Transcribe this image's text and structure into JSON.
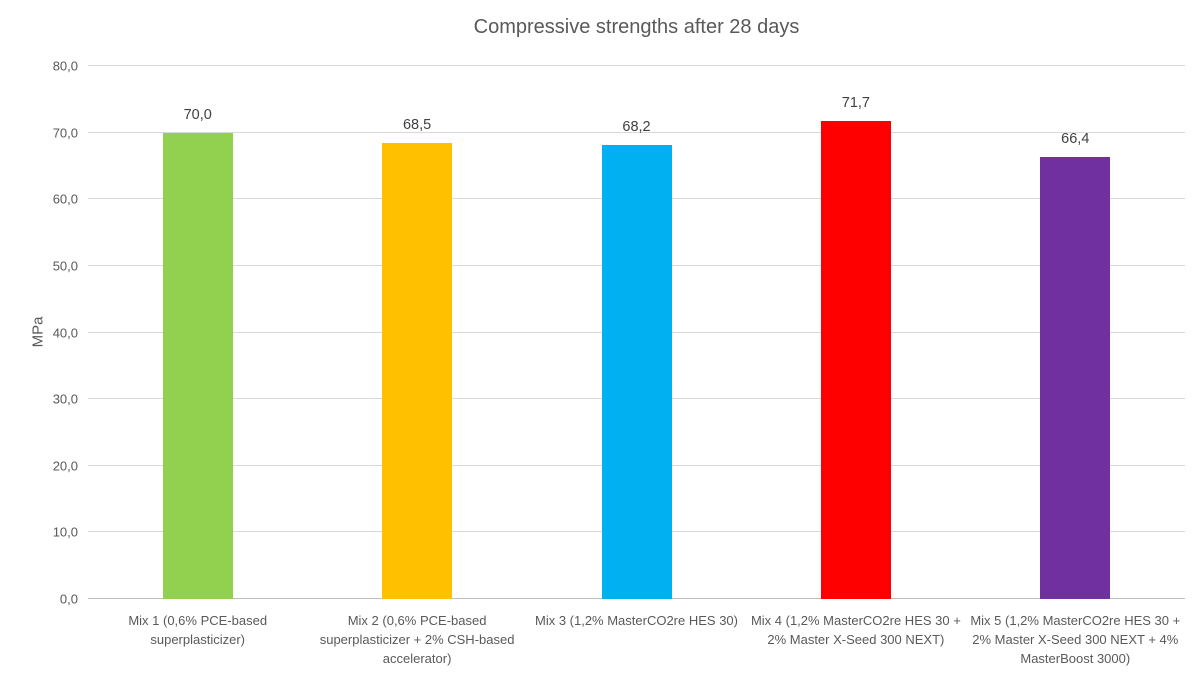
{
  "chart_data": {
    "type": "bar",
    "title": "Compressive strengths after 28 days",
    "xlabel": "",
    "ylabel": "MPa",
    "ylim": [
      0,
      80
    ],
    "ytick_step": 10,
    "ytick_labels": [
      "0,0",
      "10,0",
      "20,0",
      "30,0",
      "40,0",
      "50,0",
      "60,0",
      "70,0",
      "80,0"
    ],
    "grid": true,
    "legend": false,
    "categories": [
      "Mix 1 (0,6% PCE-based superplasticizer)",
      "Mix 2 (0,6% PCE-based superplasticizer + 2% CSH-based accelerator)",
      "Mix 3 (1,2% MasterCO2re HES 30)",
      "Mix 4 (1,2% MasterCO2re HES 30 + 2% Master X-Seed 300 NEXT)",
      "Mix 5 (1,2% MasterCO2re HES 30 + 2% Master X-Seed 300 NEXT + 4% MasterBoost 3000)"
    ],
    "values": [
      70.0,
      68.5,
      68.2,
      71.7,
      66.4
    ],
    "value_labels": [
      "70,0",
      "68,5",
      "68,2",
      "71,7",
      "66,4"
    ],
    "bar_colors": [
      "#92D050",
      "#FFC000",
      "#00B0F0",
      "#FF0000",
      "#7030A0"
    ]
  },
  "colors": {
    "gridline": "#D9D9D9",
    "axis_line": "#BFBFBF",
    "title_text": "#595959",
    "tick_text": "#595959",
    "value_text": "#404040",
    "background": "#FFFFFF"
  }
}
